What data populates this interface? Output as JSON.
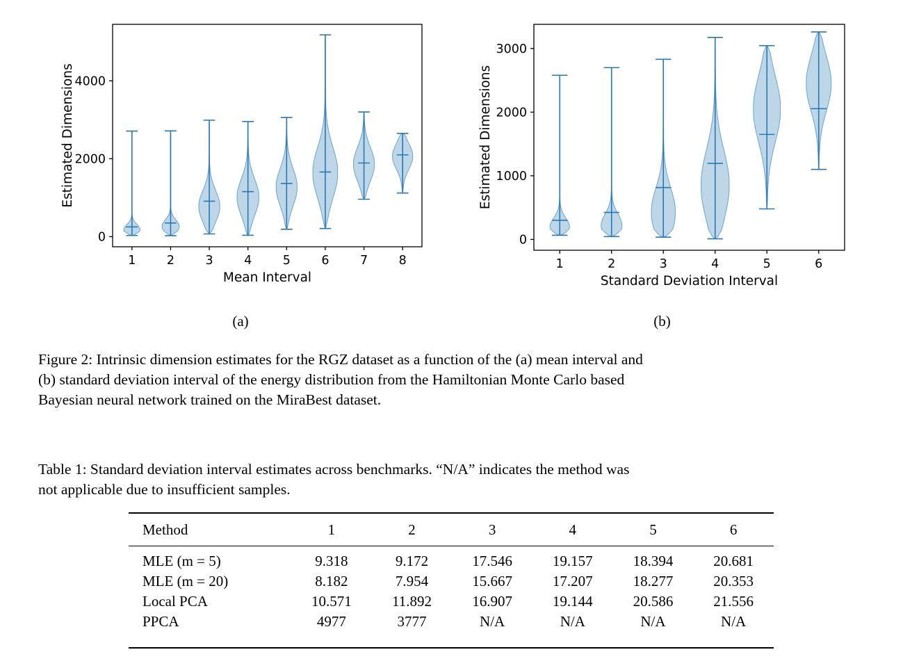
{
  "figure": {
    "panel_labels": {
      "a": "(a)",
      "b": "(b)"
    },
    "caption_lines": [
      "Figure 2: Intrinsic dimension estimates for the RGZ dataset as a function of the (a) mean interval and",
      "(b) standard deviation interval of the energy distribution from the Hamiltonian Monte Carlo based",
      "Bayesian neural network trained on the MiraBest dataset."
    ]
  },
  "chart_data": [
    {
      "type": "violin",
      "title": "",
      "xlabel": "Mean Interval",
      "ylabel": "Estimated Dimensions",
      "categories": [
        "1",
        "2",
        "3",
        "4",
        "5",
        "6",
        "7",
        "8"
      ],
      "yticks": [
        0,
        2000,
        4000
      ],
      "ylim": [
        -260,
        5450
      ],
      "grid": false,
      "violins": [
        {
          "min": 30,
          "max": 2710,
          "median": 250,
          "mode": 170,
          "bw": 140,
          "halfwidth": 0.21
        },
        {
          "min": 25,
          "max": 2715,
          "median": 350,
          "mode": 260,
          "bw": 170,
          "halfwidth": 0.22
        },
        {
          "min": 70,
          "max": 2990,
          "median": 910,
          "mode": 780,
          "bw": 400,
          "halfwidth": 0.27
        },
        {
          "min": 35,
          "max": 2955,
          "median": 1155,
          "mode": 1010,
          "bw": 470,
          "halfwidth": 0.28
        },
        {
          "min": 190,
          "max": 3060,
          "median": 1365,
          "mode": 1270,
          "bw": 480,
          "halfwidth": 0.27
        },
        {
          "min": 210,
          "max": 5180,
          "median": 1660,
          "mode": 1640,
          "bw": 650,
          "halfwidth": 0.32
        },
        {
          "min": 960,
          "max": 3200,
          "median": 1890,
          "mode": 1860,
          "bw": 430,
          "halfwidth": 0.27
        },
        {
          "min": 1120,
          "max": 2650,
          "median": 2100,
          "mode": 2060,
          "bw": 330,
          "halfwidth": 0.26
        }
      ],
      "fill": "#bdd7e9",
      "edge": "#6ba3cd",
      "line": "#2878b5"
    },
    {
      "type": "violin",
      "title": "",
      "xlabel": "Standard Deviation Interval",
      "ylabel": "Estimated Dimensions",
      "categories": [
        "1",
        "2",
        "3",
        "4",
        "5",
        "6"
      ],
      "yticks": [
        0,
        1000,
        2000,
        3000
      ],
      "ylim": [
        -170,
        3380
      ],
      "grid": false,
      "violins": [
        {
          "min": 65,
          "max": 2580,
          "median": 300,
          "mode": 185,
          "bw": 150,
          "halfwidth": 0.19
        },
        {
          "min": 45,
          "max": 2700,
          "median": 425,
          "mode": 215,
          "bw": 185,
          "halfwidth": 0.2
        },
        {
          "min": 35,
          "max": 2830,
          "median": 815,
          "mode": 430,
          "bw": 380,
          "halfwidth": 0.23
        },
        {
          "min": 10,
          "max": 3175,
          "median": 1195,
          "mode": 850,
          "bw": 560,
          "halfwidth": 0.27
        },
        {
          "min": 480,
          "max": 3045,
          "median": 1650,
          "mode": 2050,
          "bw": 520,
          "halfwidth": 0.26
        },
        {
          "min": 1100,
          "max": 3260,
          "median": 2055,
          "mode": 2450,
          "bw": 430,
          "halfwidth": 0.24
        }
      ],
      "fill": "#bdd7e9",
      "edge": "#6ba3cd",
      "line": "#2878b5"
    }
  ],
  "table": {
    "caption_lines": [
      "Table 1: Standard deviation interval estimates across benchmarks. “N/A” indicates the method was",
      "not applicable due to insufficient samples."
    ],
    "headers": [
      "Method",
      "1",
      "2",
      "3",
      "4",
      "5",
      "6"
    ],
    "rows": [
      {
        "method": "MLE (m = 5)",
        "values": [
          "9.318",
          "9.172",
          "17.546",
          "19.157",
          "18.394",
          "20.681"
        ]
      },
      {
        "method": "MLE (m = 20)",
        "values": [
          "8.182",
          "7.954",
          "15.667",
          "17.207",
          "18.277",
          "20.353"
        ]
      },
      {
        "method": "Local PCA",
        "values": [
          "10.571",
          "11.892",
          "16.907",
          "19.144",
          "20.586",
          "21.556"
        ]
      },
      {
        "method": "PPCA",
        "values": [
          "4977",
          "3777",
          "N/A",
          "N/A",
          "N/A",
          "N/A"
        ]
      }
    ]
  }
}
